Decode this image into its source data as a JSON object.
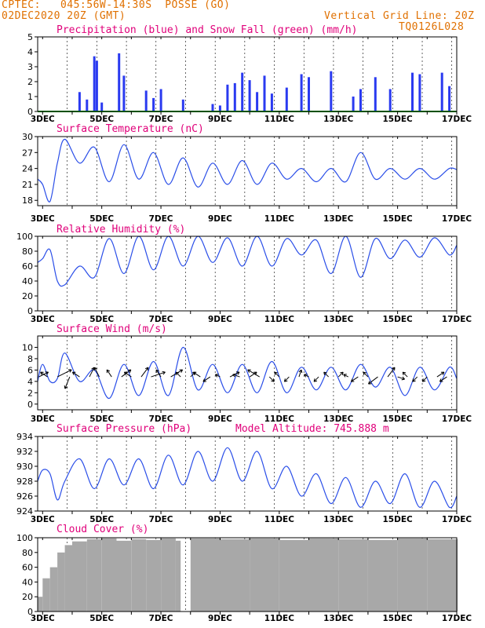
{
  "header": {
    "source": "CPTEC:",
    "coords": "045:56W-14:30S",
    "location": "POSSE (GO)",
    "run": "02DEC2020 20Z (GMT)",
    "grid_note": "Vertical Grid Line: 20Z",
    "model": "TQ0126L028"
  },
  "colors": {
    "title": "#e0007a",
    "header": "#e07000",
    "line": "#2a4ee8",
    "bar": "#2a3af0",
    "snow": "#00a000",
    "cloud": "#a8a8a8",
    "arrow": "#000000"
  },
  "x_axis": {
    "start": "02DEC2020 20Z",
    "end": "17DEC2020 00Z",
    "tick_labels": [
      "3DEC",
      "5DEC",
      "7DEC",
      "9DEC",
      "11DEC",
      "13DEC",
      "15DEC",
      "17DEC"
    ],
    "minor_ticks": "daily",
    "vertical_grid_line": "20Z"
  },
  "chart_data": [
    {
      "type": "bar",
      "title": "Precipitation (blue) and Snow Fall (green) (mm/h)",
      "ylim": [
        0,
        5
      ],
      "yticks": [
        0,
        1,
        2,
        3,
        4,
        5
      ],
      "series": [
        {
          "name": "Precipitation",
          "color": "#2a3af0",
          "x": [
            "04DEC2020 06Z",
            "04DEC2020 12Z",
            "04DEC2020 18Z",
            "04DEC2020 20Z",
            "05DEC2020 00Z",
            "05DEC2020 14Z",
            "05DEC2020 18Z",
            "06DEC2020 12Z",
            "06DEC2020 18Z",
            "07DEC2020 00Z",
            "07DEC2020 18Z",
            "08DEC2020 18Z",
            "09DEC2020 00Z",
            "09DEC2020 06Z",
            "09DEC2020 12Z",
            "09DEC2020 18Z",
            "10DEC2020 00Z",
            "10DEC2020 06Z",
            "10DEC2020 12Z",
            "10DEC2020 18Z",
            "11DEC2020 06Z",
            "11DEC2020 18Z",
            "12DEC2020 00Z",
            "12DEC2020 18Z",
            "13DEC2020 12Z",
            "13DEC2020 18Z",
            "14DEC2020 06Z",
            "14DEC2020 18Z",
            "15DEC2020 12Z",
            "15DEC2020 18Z",
            "16DEC2020 12Z",
            "16DEC2020 18Z"
          ],
          "values": [
            1.3,
            0.8,
            3.7,
            3.4,
            0.6,
            3.9,
            2.4,
            1.4,
            0.9,
            1.5,
            0.8,
            0.5,
            0.4,
            1.8,
            1.9,
            2.6,
            2.1,
            1.3,
            2.4,
            1.2,
            1.6,
            2.5,
            2.3,
            2.7,
            1.0,
            1.5,
            2.3,
            1.5,
            2.6,
            2.5,
            2.6,
            1.7
          ]
        },
        {
          "name": "Snow Fall",
          "color": "#00a000",
          "x": [
            "02DEC2020 20Z",
            "17DEC2020 00Z"
          ],
          "values": [
            0,
            0
          ]
        }
      ]
    },
    {
      "type": "line",
      "title": "Surface Temperature (nC)",
      "ylim": [
        17,
        30
      ],
      "yticks": [
        18,
        21,
        24,
        27,
        30
      ],
      "series": [
        {
          "name": "",
          "x": [
            "02DEC2020 20Z",
            "03DEC2020 00Z",
            "03DEC2020 06Z",
            "03DEC2020 12Z",
            "03DEC2020 18Z",
            "04DEC2020 06Z",
            "04DEC2020 18Z",
            "05DEC2020 06Z",
            "05DEC2020 18Z",
            "06DEC2020 06Z",
            "06DEC2020 18Z",
            "07DEC2020 06Z",
            "07DEC2020 18Z",
            "08DEC2020 06Z",
            "08DEC2020 18Z",
            "09DEC2020 06Z",
            "09DEC2020 18Z",
            "10DEC2020 06Z",
            "10DEC2020 18Z",
            "11DEC2020 06Z",
            "11DEC2020 18Z",
            "12DEC2020 06Z",
            "12DEC2020 18Z",
            "13DEC2020 06Z",
            "13DEC2020 18Z",
            "14DEC2020 06Z",
            "14DEC2020 18Z",
            "15DEC2020 06Z",
            "15DEC2020 18Z",
            "16DEC2020 06Z",
            "16DEC2020 18Z",
            "17DEC2020 00Z"
          ],
          "values": [
            22,
            21,
            17.8,
            25,
            29.5,
            25,
            28,
            21.5,
            28.5,
            22,
            27,
            21,
            26,
            20.5,
            25,
            21,
            25.5,
            21,
            25,
            22,
            24,
            21.5,
            24,
            21.5,
            27,
            22,
            24,
            22,
            24,
            22,
            24,
            23.8
          ]
        }
      ]
    },
    {
      "type": "line",
      "title": "Relative Humidity (%)",
      "ylim": [
        0,
        100
      ],
      "yticks": [
        0,
        20,
        40,
        60,
        80,
        100
      ],
      "series": [
        {
          "name": "",
          "x": [
            "02DEC2020 20Z",
            "03DEC2020 00Z",
            "03DEC2020 06Z",
            "03DEC2020 12Z",
            "03DEC2020 18Z",
            "04DEC2020 06Z",
            "04DEC2020 18Z",
            "05DEC2020 06Z",
            "05DEC2020 18Z",
            "06DEC2020 06Z",
            "06DEC2020 18Z",
            "07DEC2020 06Z",
            "07DEC2020 18Z",
            "08DEC2020 06Z",
            "08DEC2020 18Z",
            "09DEC2020 06Z",
            "09DEC2020 18Z",
            "10DEC2020 06Z",
            "10DEC2020 18Z",
            "11DEC2020 06Z",
            "11DEC2020 18Z",
            "12DEC2020 06Z",
            "12DEC2020 18Z",
            "13DEC2020 06Z",
            "13DEC2020 18Z",
            "14DEC2020 06Z",
            "14DEC2020 18Z",
            "15DEC2020 06Z",
            "15DEC2020 18Z",
            "16DEC2020 06Z",
            "16DEC2020 18Z",
            "17DEC2020 00Z"
          ],
          "values": [
            65,
            70,
            82,
            40,
            35,
            60,
            45,
            97,
            50,
            100,
            55,
            100,
            60,
            100,
            65,
            98,
            60,
            100,
            60,
            97,
            75,
            95,
            50,
            100,
            45,
            97,
            70,
            95,
            72,
            98,
            75,
            88
          ]
        }
      ]
    },
    {
      "type": "line",
      "title": "Surface Wind (m/s)",
      "ylim": [
        -1,
        12
      ],
      "yticks": [
        0,
        2,
        4,
        6,
        8,
        10
      ],
      "series": [
        {
          "name": "",
          "x": [
            "02DEC2020 20Z",
            "03DEC2020 00Z",
            "03DEC2020 06Z",
            "03DEC2020 12Z",
            "03DEC2020 18Z",
            "04DEC2020 06Z",
            "04DEC2020 18Z",
            "05DEC2020 06Z",
            "05DEC2020 18Z",
            "06DEC2020 06Z",
            "06DEC2020 18Z",
            "07DEC2020 06Z",
            "07DEC2020 18Z",
            "08DEC2020 06Z",
            "08DEC2020 18Z",
            "09DEC2020 06Z",
            "09DEC2020 18Z",
            "10DEC2020 06Z",
            "10DEC2020 18Z",
            "11DEC2020 06Z",
            "11DEC2020 18Z",
            "12DEC2020 06Z",
            "12DEC2020 18Z",
            "13DEC2020 06Z",
            "13DEC2020 18Z",
            "14DEC2020 06Z",
            "14DEC2020 18Z",
            "15DEC2020 06Z",
            "15DEC2020 18Z",
            "16DEC2020 06Z",
            "16DEC2020 18Z",
            "17DEC2020 00Z"
          ],
          "values": [
            4,
            7,
            4,
            4.5,
            9,
            4,
            6,
            1,
            7,
            1.5,
            7.5,
            1.5,
            10,
            2.5,
            7,
            2,
            7,
            2,
            7.5,
            2,
            6.5,
            2.5,
            6.5,
            2.5,
            7,
            3,
            6.5,
            1.5,
            6.5,
            2.5,
            6.5,
            4.5
          ]
        }
      ],
      "wind_vectors": [
        {
          "x": "02DEC2020 21Z",
          "u": 2,
          "v": 1
        },
        {
          "x": "03DEC2020 04Z",
          "u": -1.5,
          "v": 1
        },
        {
          "x": "03DEC2020 12Z",
          "u": 3,
          "v": 1.5
        },
        {
          "x": "03DEC2020 22Z",
          "u": -1,
          "v": -2.5
        },
        {
          "x": "04DEC2020 06Z",
          "u": -1.5,
          "v": 1
        },
        {
          "x": "04DEC2020 14Z",
          "u": 1,
          "v": 2
        },
        {
          "x": "04DEC2020 22Z",
          "u": -1,
          "v": 2
        },
        {
          "x": "05DEC2020 08Z",
          "u": -1,
          "v": 1.5
        },
        {
          "x": "05DEC2020 16Z",
          "u": 2,
          "v": 1.5
        },
        {
          "x": "06DEC2020 00Z",
          "u": -1.5,
          "v": 1
        },
        {
          "x": "06DEC2020 08Z",
          "u": 1.5,
          "v": 2
        },
        {
          "x": "06DEC2020 16Z",
          "u": 3,
          "v": 1
        },
        {
          "x": "07DEC2020 00Z",
          "u": -1,
          "v": 1.5
        },
        {
          "x": "07DEC2020 08Z",
          "u": 2.5,
          "v": 1.5
        },
        {
          "x": "07DEC2020 16Z",
          "u": -1,
          "v": 1
        },
        {
          "x": "08DEC2020 00Z",
          "u": 1,
          "v": 1
        },
        {
          "x": "08DEC2020 08Z",
          "u": -1.5,
          "v": 1
        },
        {
          "x": "08DEC2020 16Z",
          "u": -1.5,
          "v": -1
        },
        {
          "x": "09DEC2020 00Z",
          "u": -1,
          "v": 0.5
        },
        {
          "x": "09DEC2020 08Z",
          "u": 2,
          "v": 1
        },
        {
          "x": "09DEC2020 16Z",
          "u": -1.5,
          "v": 0.5
        },
        {
          "x": "10DEC2020 00Z",
          "u": 1.5,
          "v": 1
        },
        {
          "x": "10DEC2020 08Z",
          "u": -2.5,
          "v": 1.5
        },
        {
          "x": "10DEC2020 16Z",
          "u": 1,
          "v": -1
        },
        {
          "x": "11DEC2020 00Z",
          "u": -1,
          "v": 1
        },
        {
          "x": "11DEC2020 08Z",
          "u": -1,
          "v": -1
        },
        {
          "x": "11DEC2020 16Z",
          "u": 0.5,
          "v": 1.5
        },
        {
          "x": "12DEC2020 00Z",
          "u": -1,
          "v": 0.5
        },
        {
          "x": "12DEC2020 08Z",
          "u": -1,
          "v": -1
        },
        {
          "x": "12DEC2020 16Z",
          "u": -1,
          "v": 1
        },
        {
          "x": "13DEC2020 00Z",
          "u": 1,
          "v": 1
        },
        {
          "x": "13DEC2020 08Z",
          "u": -1,
          "v": 0.5
        },
        {
          "x": "13DEC2020 16Z",
          "u": -1.5,
          "v": -1
        },
        {
          "x": "14DEC2020 00Z",
          "u": -1,
          "v": 1
        },
        {
          "x": "14DEC2020 08Z",
          "u": -2,
          "v": -1.5
        },
        {
          "x": "14DEC2020 16Z",
          "u": 1.5,
          "v": 2
        },
        {
          "x": "15DEC2020 00Z",
          "u": 1.5,
          "v": -0.5
        },
        {
          "x": "15DEC2020 08Z",
          "u": -1,
          "v": 1
        },
        {
          "x": "15DEC2020 16Z",
          "u": -1,
          "v": -1
        },
        {
          "x": "16DEC2020 00Z",
          "u": -1,
          "v": -1
        },
        {
          "x": "16DEC2020 08Z",
          "u": 1.5,
          "v": 1
        },
        {
          "x": "16DEC2020 16Z",
          "u": -1.5,
          "v": -1
        }
      ]
    },
    {
      "type": "line",
      "title": "Surface Pressure (hPa)",
      "subtitle": "Model Altitude: 745.888 m",
      "ylim": [
        924,
        934
      ],
      "yticks": [
        924,
        926,
        928,
        930,
        932,
        934
      ],
      "series": [
        {
          "name": "",
          "x": [
            "02DEC2020 20Z",
            "03DEC2020 00Z",
            "03DEC2020 06Z",
            "03DEC2020 12Z",
            "03DEC2020 18Z",
            "04DEC2020 06Z",
            "04DEC2020 18Z",
            "05DEC2020 06Z",
            "05DEC2020 18Z",
            "06DEC2020 06Z",
            "06DEC2020 18Z",
            "07DEC2020 06Z",
            "07DEC2020 18Z",
            "08DEC2020 06Z",
            "08DEC2020 18Z",
            "09DEC2020 06Z",
            "09DEC2020 18Z",
            "10DEC2020 06Z",
            "10DEC2020 18Z",
            "11DEC2020 06Z",
            "11DEC2020 18Z",
            "12DEC2020 06Z",
            "12DEC2020 18Z",
            "13DEC2020 06Z",
            "13DEC2020 18Z",
            "14DEC2020 06Z",
            "14DEC2020 18Z",
            "15DEC2020 06Z",
            "15DEC2020 18Z",
            "16DEC2020 06Z",
            "16DEC2020 18Z",
            "17DEC2020 00Z"
          ],
          "values": [
            928,
            929.5,
            929,
            925.5,
            928,
            931,
            927,
            931,
            927.5,
            931,
            927,
            931.5,
            927.5,
            932,
            928,
            932.5,
            928,
            932,
            927,
            930,
            926,
            929,
            925,
            928.5,
            924.5,
            928,
            925,
            929,
            924.5,
            928,
            924.5,
            926
          ]
        }
      ]
    },
    {
      "type": "bar",
      "title": "Cloud Cover (%)",
      "ylim": [
        0,
        100
      ],
      "yticks": [
        0,
        20,
        40,
        60,
        80,
        100
      ],
      "series": [
        {
          "name": "",
          "color": "#a8a8a8",
          "x": [
            "02DEC2020 20Z",
            "03DEC2020 00Z",
            "03DEC2020 06Z",
            "03DEC2020 12Z",
            "03DEC2020 18Z",
            "04DEC2020 00Z",
            "04DEC2020 12Z",
            "05DEC2020 00Z",
            "05DEC2020 12Z",
            "06DEC2020 00Z",
            "06DEC2020 12Z",
            "07DEC2020 00Z",
            "07DEC2020 12Z",
            "07DEC2020 16Z",
            "08DEC2020 00Z",
            "09DEC2020 00Z",
            "10DEC2020 00Z",
            "11DEC2020 00Z",
            "12DEC2020 00Z",
            "13DEC2020 00Z",
            "14DEC2020 00Z",
            "15DEC2020 00Z",
            "16DEC2020 00Z",
            "17DEC2020 00Z"
          ],
          "values": [
            20,
            45,
            60,
            80,
            90,
            95,
            98,
            99,
            96,
            98,
            97,
            99,
            96,
            0,
            99,
            98,
            99,
            97,
            99,
            98,
            97,
            99,
            98,
            98
          ]
        }
      ]
    }
  ]
}
